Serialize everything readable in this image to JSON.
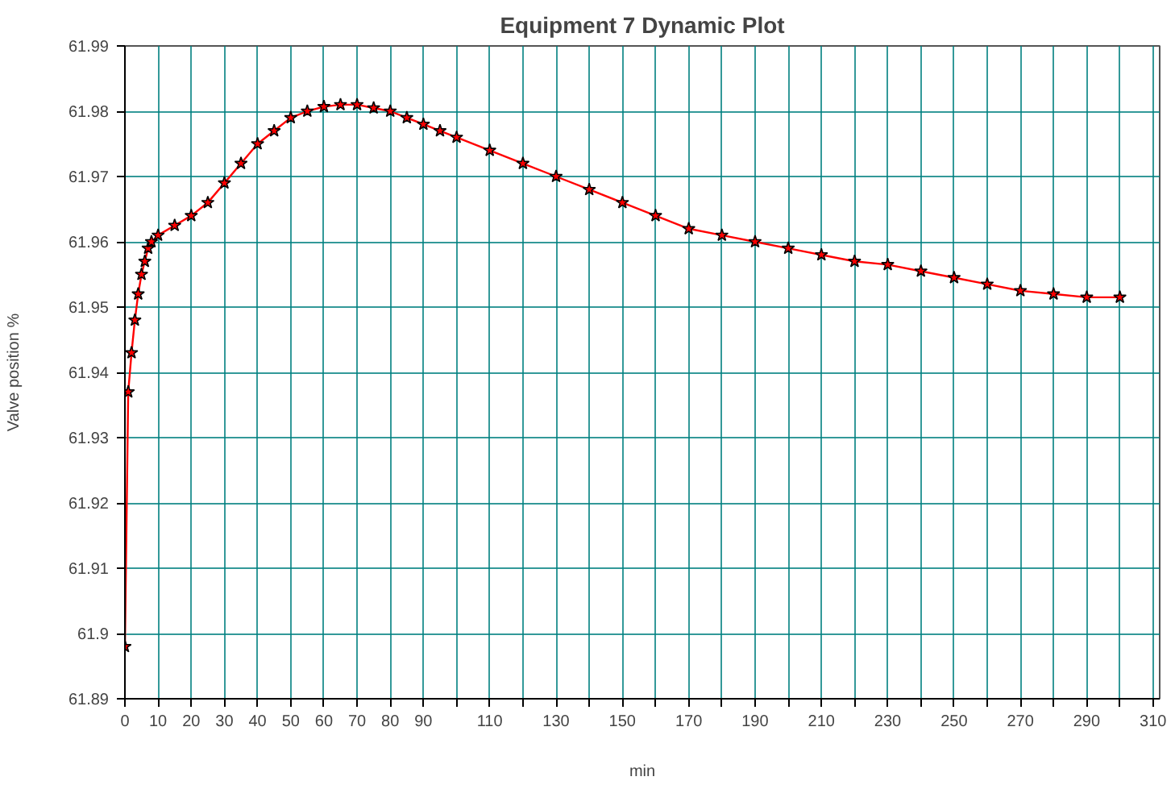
{
  "chart_data": {
    "type": "line",
    "title": "Equipment 7 Dynamic Plot",
    "xlabel": "min",
    "ylabel": "Valve position %",
    "xlim": [
      0,
      312
    ],
    "ylim": [
      61.89,
      61.99
    ],
    "xticks": [
      0,
      10,
      20,
      30,
      40,
      50,
      60,
      70,
      80,
      90,
      {
        "value": 100,
        "label": null
      },
      110,
      {
        "value": 120,
        "label": null
      },
      130,
      {
        "value": 140,
        "label": null
      },
      150,
      {
        "value": 160,
        "label": null
      },
      170,
      {
        "value": 180,
        "label": null
      },
      190,
      {
        "value": 200,
        "label": null
      },
      210,
      {
        "value": 220,
        "label": null
      },
      230,
      {
        "value": 240,
        "label": null
      },
      250,
      {
        "value": 260,
        "label": null
      },
      270,
      {
        "value": 280,
        "label": null
      },
      290,
      {
        "value": 300,
        "label": null
      },
      310
    ],
    "yticks": [
      61.89,
      61.9,
      61.91,
      61.92,
      61.93,
      61.94,
      61.95,
      61.96,
      61.97,
      61.98,
      61.99
    ],
    "grid": true,
    "marker": "star",
    "line_style": "solid",
    "series": [
      {
        "color": "#ff0000",
        "x": [
          0,
          1,
          2,
          3,
          4,
          5,
          6,
          7,
          8,
          10,
          15,
          20,
          25,
          30,
          35,
          40,
          45,
          50,
          55,
          60,
          65,
          70,
          75,
          80,
          85,
          90,
          95,
          100,
          110,
          120,
          130,
          140,
          150,
          160,
          170,
          180,
          190,
          200,
          210,
          220,
          230,
          240,
          250,
          260,
          270,
          280,
          290,
          300
        ],
        "values": [
          61.898,
          61.937,
          61.943,
          61.948,
          61.952,
          61.955,
          61.957,
          61.959,
          61.96,
          61.961,
          61.9625,
          61.964,
          61.966,
          61.969,
          61.972,
          61.975,
          61.977,
          61.979,
          61.98,
          61.9807,
          61.981,
          61.981,
          61.9805,
          61.98,
          61.979,
          61.978,
          61.977,
          61.976,
          61.974,
          61.972,
          61.97,
          61.968,
          61.966,
          61.964,
          61.962,
          61.961,
          61.96,
          61.959,
          61.958,
          61.957,
          61.9565,
          61.9555,
          61.9545,
          61.9535,
          61.9525,
          61.952,
          61.9515,
          61.9515
        ]
      }
    ]
  }
}
